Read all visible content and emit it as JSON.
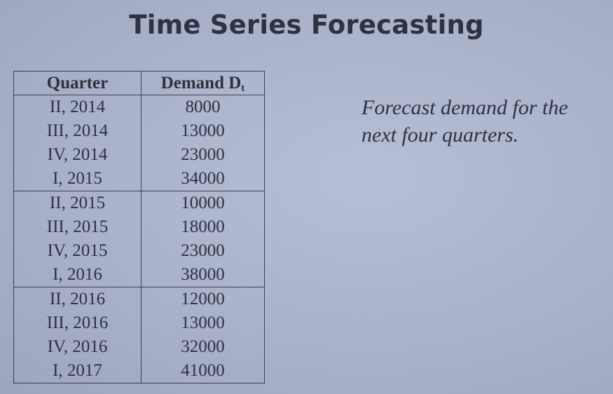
{
  "slide": {
    "title": "Time Series Forecasting",
    "prompt_line1": "Forecast demand for the",
    "prompt_line2": "next four quarters."
  },
  "table": {
    "headers": {
      "quarter": "Quarter",
      "demand": "Demand D",
      "demand_subscript": "t"
    },
    "rows": [
      {
        "quarter": "II, 2014",
        "demand": "8000"
      },
      {
        "quarter": "III, 2014",
        "demand": "13000"
      },
      {
        "quarter": "IV, 2014",
        "demand": "23000"
      },
      {
        "quarter": "I, 2015",
        "demand": "34000"
      },
      {
        "quarter": "II, 2015",
        "demand": "10000"
      },
      {
        "quarter": "III, 2015",
        "demand": "18000"
      },
      {
        "quarter": "IV, 2015",
        "demand": "23000"
      },
      {
        "quarter": "I, 2016",
        "demand": "38000"
      },
      {
        "quarter": "II, 2016",
        "demand": "12000"
      },
      {
        "quarter": "III, 2016",
        "demand": "13000"
      },
      {
        "quarter": "IV, 2016",
        "demand": "32000"
      },
      {
        "quarter": "I, 2017",
        "demand": "41000"
      }
    ]
  }
}
